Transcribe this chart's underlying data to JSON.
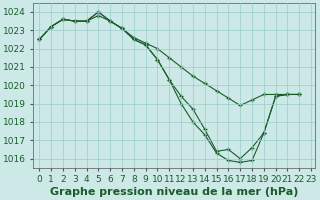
{
  "line1": [
    1022.5,
    1023.2,
    1023.6,
    1023.5,
    1023.5,
    1023.8,
    1023.5,
    1023.1,
    1022.6,
    1022.3,
    1022.0,
    1021.5,
    1021.0,
    1020.5,
    1020.1,
    1019.7,
    1019.3,
    1018.9,
    1019.2,
    1019.5,
    1019.5,
    1019.5,
    1019.5
  ],
  "line2": [
    1022.5,
    1023.2,
    1023.6,
    1023.5,
    1023.5,
    1024.0,
    1023.5,
    1023.1,
    1022.5,
    1022.2,
    1021.4,
    1020.3,
    1019.4,
    1018.7,
    1017.6,
    1016.4,
    1016.5,
    1016.0,
    1016.6,
    1017.4,
    1019.4,
    1019.5,
    1019.5
  ],
  "line3": [
    1022.5,
    1023.2,
    1023.6,
    1023.5,
    1023.5,
    1024.0,
    1023.5,
    1023.1,
    1022.5,
    1022.2,
    1021.4,
    1020.3,
    1019.0,
    1018.0,
    1017.3,
    1016.3,
    1015.9,
    1015.8,
    1015.9,
    1017.4,
    1019.4,
    1019.5,
    1019.5
  ],
  "bg_color": "#cce9e7",
  "grid_color": "#99ccca",
  "line_color": "#1a5c2a",
  "xlim_min": -0.5,
  "xlim_max": 23.3,
  "ylim_min": 1015.5,
  "ylim_max": 1024.5,
  "yticks": [
    1016,
    1017,
    1018,
    1019,
    1020,
    1021,
    1022,
    1023,
    1024
  ],
  "xticks": [
    0,
    1,
    2,
    3,
    4,
    5,
    6,
    7,
    8,
    9,
    10,
    11,
    12,
    13,
    14,
    15,
    16,
    17,
    18,
    19,
    20,
    21,
    22,
    23
  ],
  "xlabel": "Graphe pression niveau de la mer (hPa)",
  "xlabel_color": "#1a5c2a",
  "xlabel_fontsize": 8,
  "tick_fontsize": 6.5
}
